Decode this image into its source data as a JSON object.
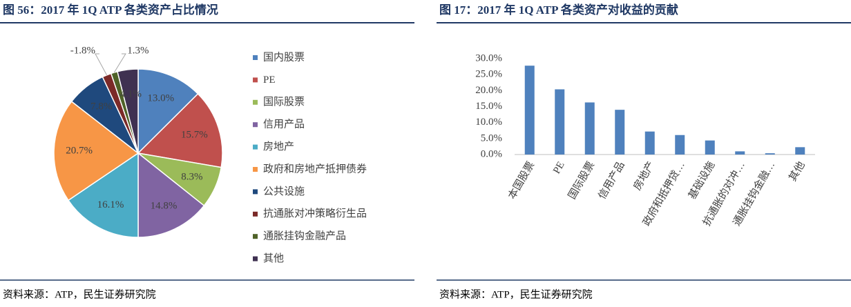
{
  "chart_data": [
    {
      "type": "pie",
      "title": "图 56：2017 年 1Q ATP 各类资产占比情况",
      "source": "资料来源：ATP，民生证券研究院",
      "categories": [
        "国内股票",
        "PE",
        "国际股票",
        "信用产品",
        "房地产",
        "政府和房地产抵押债券",
        "公共设施",
        "抗通胀对冲策略衍生品",
        "通胀挂钩金融产品",
        "其他"
      ],
      "values": [
        13.0,
        15.7,
        8.3,
        14.8,
        16.1,
        20.7,
        7.8,
        -1.8,
        1.3,
        4.1
      ],
      "value_labels": [
        "13.0%",
        "15.7%",
        "8.3%",
        "14.8%",
        "16.1%",
        "20.7%",
        "7.8%",
        "-1.8%",
        "1.3%",
        "4.1%"
      ],
      "colors": [
        "#4f81bd",
        "#c0504d",
        "#9bbb59",
        "#8064a2",
        "#4bacc6",
        "#f79646",
        "#1f497d",
        "#7b2a28",
        "#4f6228",
        "#3f3151"
      ],
      "legend": "right"
    },
    {
      "type": "bar",
      "title": "图 17：2017 年 1Q ATP 各类资产对收益的贡献",
      "source": "资料来源：ATP，民生证券研究院",
      "categories": [
        "本国股票",
        "PE",
        "国际股票",
        "信用产品",
        "房地产",
        "政府和抵押贷…",
        "基础设施",
        "抗通胀的对冲…",
        "通胀挂钩金融…",
        "其他"
      ],
      "values": [
        27.8,
        20.4,
        16.3,
        14.0,
        7.2,
        6.1,
        4.4,
        1.0,
        0.4,
        2.3
      ],
      "color": "#4f81bd",
      "ylim": [
        0,
        30
      ],
      "yticks": [
        {
          "value": 0,
          "label": "0.0%"
        },
        {
          "value": 5,
          "label": "5.0%"
        },
        {
          "value": 10,
          "label": "10.0%"
        },
        {
          "value": 15,
          "label": "15.0%"
        },
        {
          "value": 20,
          "label": "20.0%"
        },
        {
          "value": 25,
          "label": "25.0%"
        },
        {
          "value": 30,
          "label": "30.0%"
        }
      ],
      "grid": false
    }
  ]
}
